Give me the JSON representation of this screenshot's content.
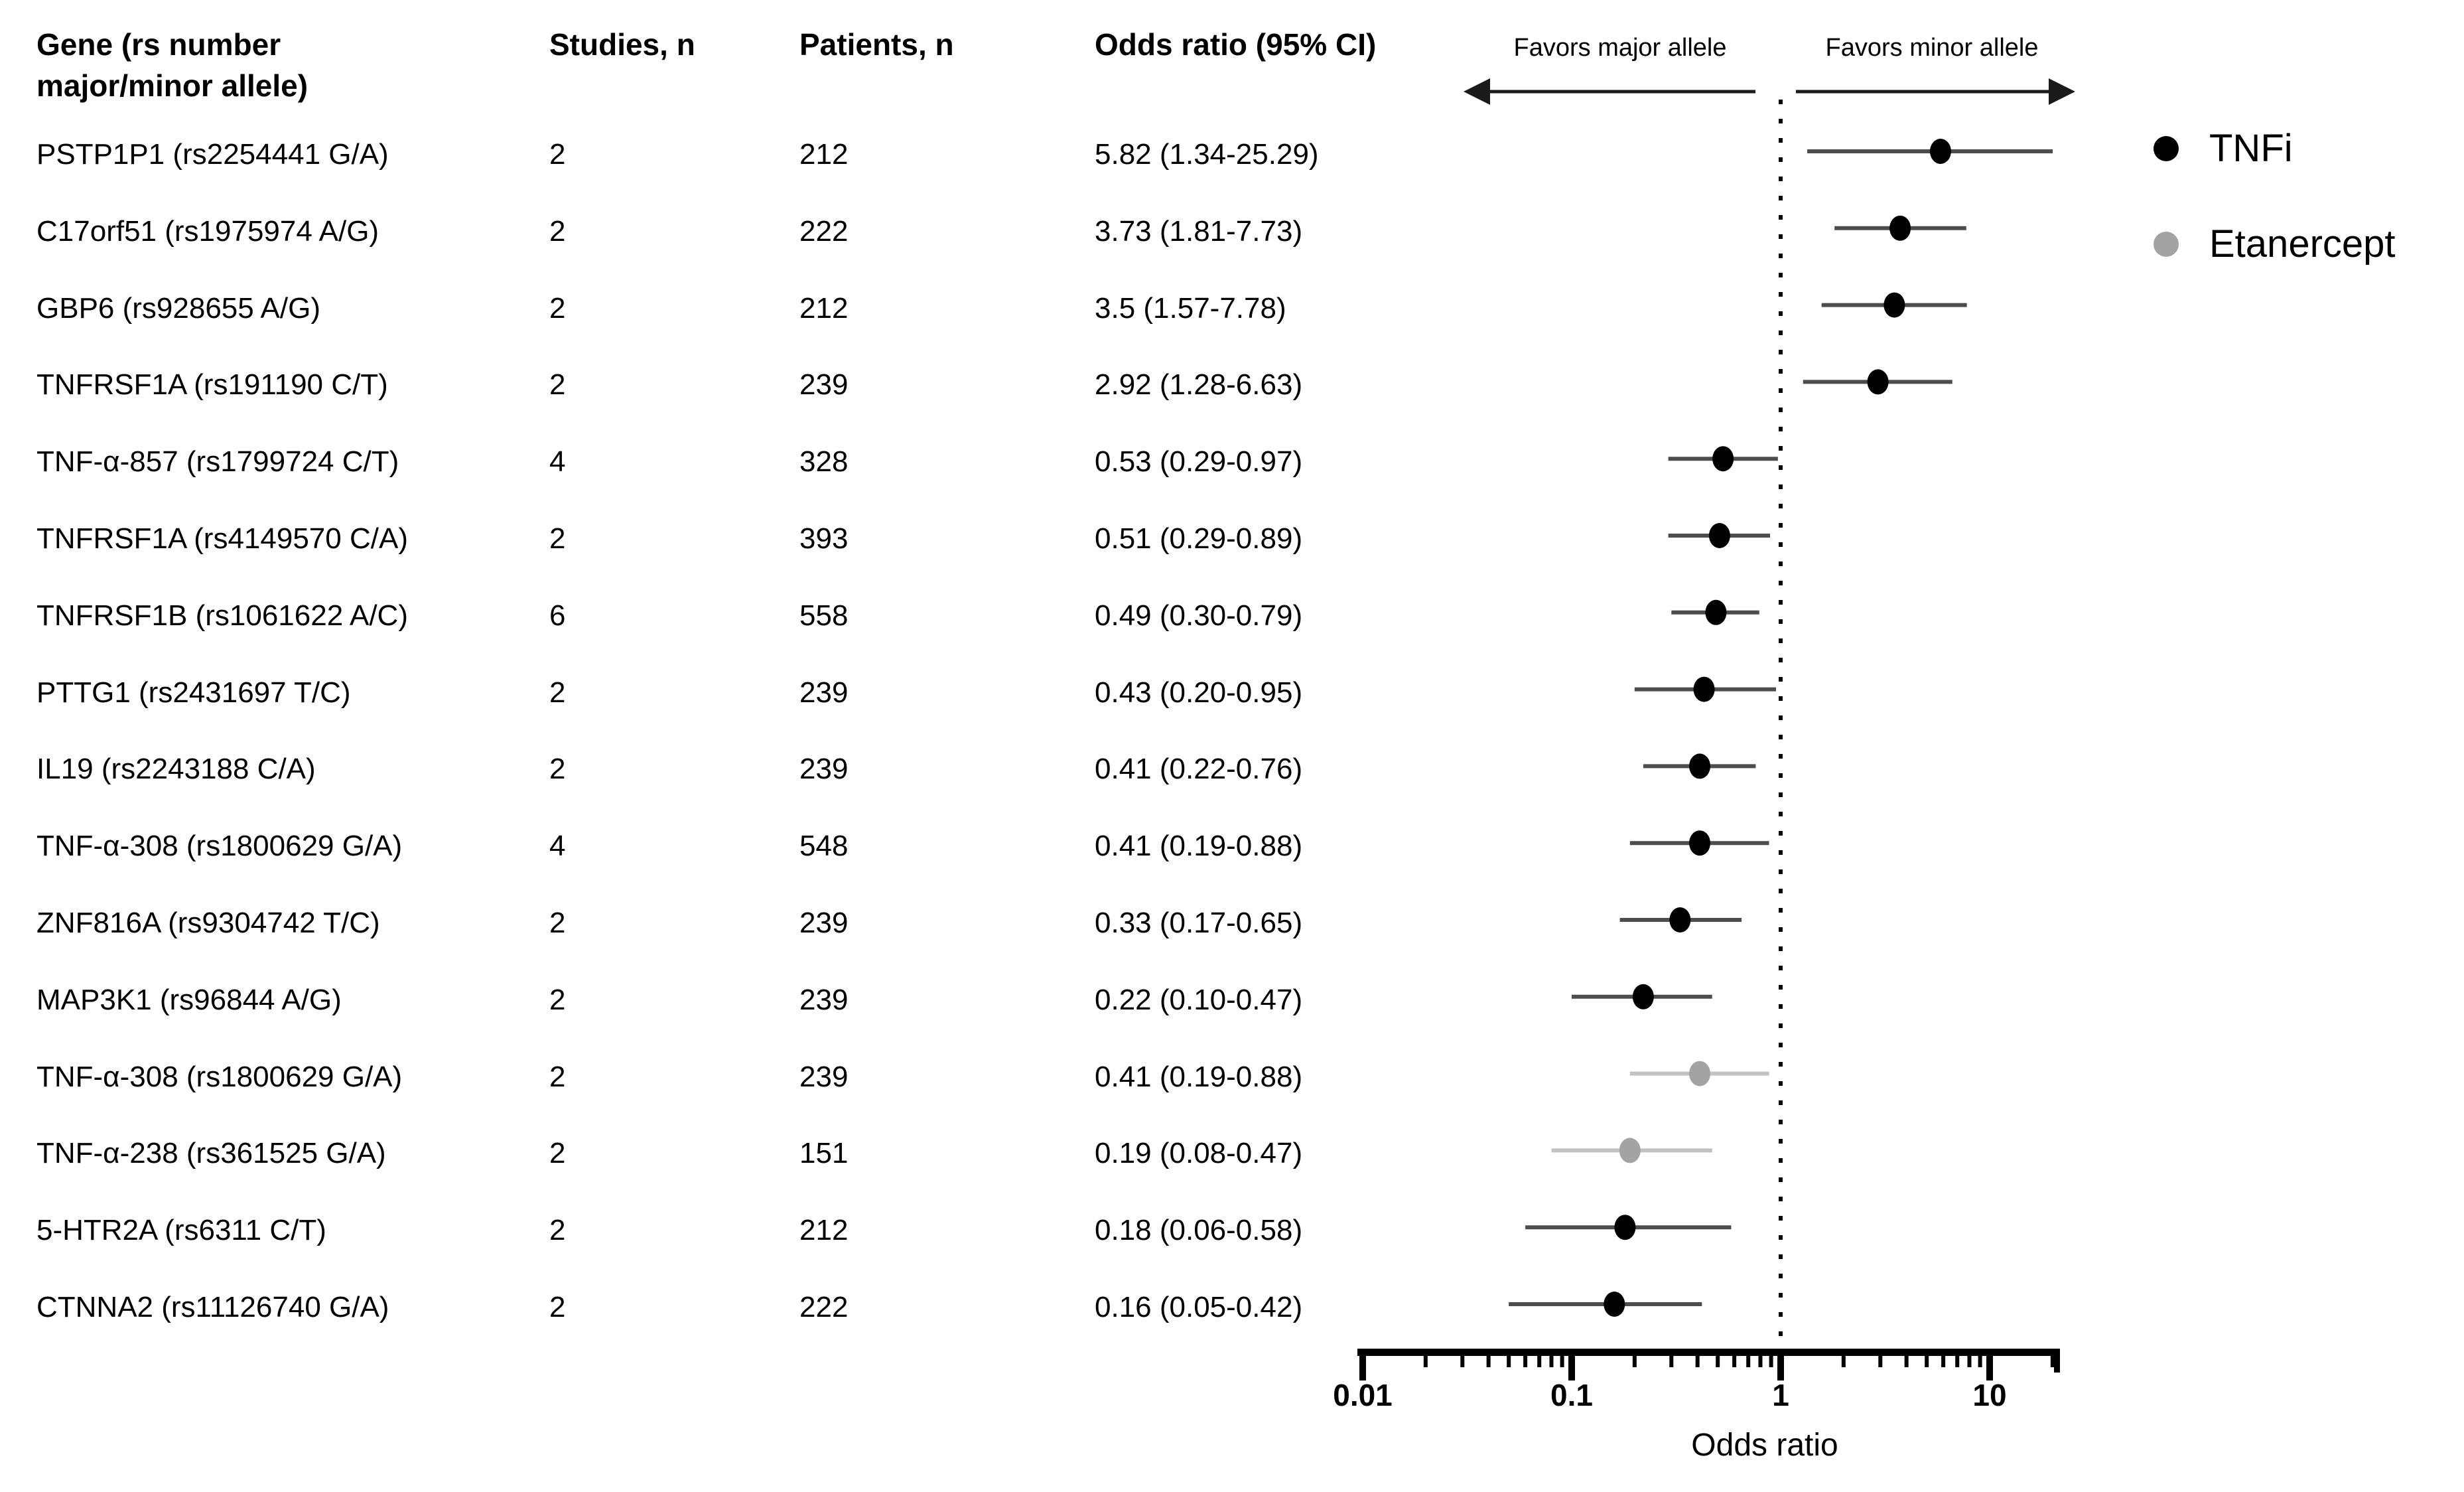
{
  "table": {
    "header": {
      "gene_line1": "Gene (rs number",
      "gene_line2": "major/minor allele)",
      "studies": "Studies, n",
      "patients": "Patients, n",
      "odds_ratio": "Odds ratio (95% CI)"
    }
  },
  "plot_annotations": {
    "favors_left": "Favors major allele",
    "favors_right": "Favors minor allele"
  },
  "legend": {
    "items": [
      {
        "label": "TNFi",
        "color": "#000000"
      },
      {
        "label": "Etanercept",
        "color": "#a3a3a3"
      }
    ]
  },
  "colors": {
    "tnfi_marker": "#000000",
    "tnfi_line": "#4d4d4d",
    "etanercept_marker": "#a3a3a3",
    "etanercept_line": "#c2c2c2",
    "reference_line": "#000000",
    "axis": "#000000",
    "arrow": "#1a1a1a"
  },
  "chart_data": {
    "type": "forest",
    "x_scale": "log",
    "xlabel": "Odds ratio",
    "x_ticks": [
      0.01,
      0.1,
      1,
      10
    ],
    "x_tick_labels": [
      "0.01",
      "0.1",
      "1",
      "10"
    ],
    "x_range": [
      0.01,
      20
    ],
    "reference_line": 1,
    "legend_position": "right",
    "rows": [
      {
        "gene": "PSTP1P1 (rs2254441 G/A)",
        "studies": "2",
        "patients": "212",
        "or_text": "5.82 (1.34-25.29)",
        "or": 5.82,
        "ci_low": 1.34,
        "ci_high": 25.29,
        "group": "TNFi"
      },
      {
        "gene": "C17orf51 (rs1975974 A/G)",
        "studies": "2",
        "patients": "222",
        "or_text": "3.73 (1.81-7.73)",
        "or": 3.73,
        "ci_low": 1.81,
        "ci_high": 7.73,
        "group": "TNFi"
      },
      {
        "gene": "GBP6 (rs928655 A/G)",
        "studies": "2",
        "patients": "212",
        "or_text": "3.5 (1.57-7.78)",
        "or": 3.5,
        "ci_low": 1.57,
        "ci_high": 7.78,
        "group": "TNFi"
      },
      {
        "gene": "TNFRSF1A (rs191190 C/T)",
        "studies": "2",
        "patients": "239",
        "or_text": "2.92 (1.28-6.63)",
        "or": 2.92,
        "ci_low": 1.28,
        "ci_high": 6.63,
        "group": "TNFi"
      },
      {
        "gene": "TNF-α-857 (rs1799724 C/T)",
        "studies": "4",
        "patients": "328",
        "or_text": "0.53 (0.29-0.97)",
        "or": 0.53,
        "ci_low": 0.29,
        "ci_high": 0.97,
        "group": "TNFi"
      },
      {
        "gene": "TNFRSF1A (rs4149570 C/A)",
        "studies": "2",
        "patients": "393",
        "or_text": "0.51 (0.29-0.89)",
        "or": 0.51,
        "ci_low": 0.29,
        "ci_high": 0.89,
        "group": "TNFi"
      },
      {
        "gene": "TNFRSF1B (rs1061622 A/C)",
        "studies": "6",
        "patients": "558",
        "or_text": "0.49 (0.30-0.79)",
        "or": 0.49,
        "ci_low": 0.3,
        "ci_high": 0.79,
        "group": "TNFi"
      },
      {
        "gene": "PTTG1 (rs2431697 T/C)",
        "studies": "2",
        "patients": "239",
        "or_text": "0.43 (0.20-0.95)",
        "or": 0.43,
        "ci_low": 0.2,
        "ci_high": 0.95,
        "group": "TNFi"
      },
      {
        "gene": "IL19 (rs2243188 C/A)",
        "studies": "2",
        "patients": "239",
        "or_text": "0.41 (0.22-0.76)",
        "or": 0.41,
        "ci_low": 0.22,
        "ci_high": 0.76,
        "group": "TNFi"
      },
      {
        "gene": "TNF-α-308 (rs1800629 G/A)",
        "studies": "4",
        "patients": "548",
        "or_text": "0.41 (0.19-0.88)",
        "or": 0.41,
        "ci_low": 0.19,
        "ci_high": 0.88,
        "group": "TNFi"
      },
      {
        "gene": "ZNF816A (rs9304742 T/C)",
        "studies": "2",
        "patients": "239",
        "or_text": "0.33 (0.17-0.65)",
        "or": 0.33,
        "ci_low": 0.17,
        "ci_high": 0.65,
        "group": "TNFi"
      },
      {
        "gene": "MAP3K1 (rs96844 A/G)",
        "studies": "2",
        "patients": "239",
        "or_text": "0.22 (0.10-0.47)",
        "or": 0.22,
        "ci_low": 0.1,
        "ci_high": 0.47,
        "group": "TNFi"
      },
      {
        "gene": "TNF-α-308 (rs1800629 G/A)",
        "studies": "2",
        "patients": "239",
        "or_text": "0.41 (0.19-0.88)",
        "or": 0.41,
        "ci_low": 0.19,
        "ci_high": 0.88,
        "group": "Etanercept"
      },
      {
        "gene": "TNF-α-238 (rs361525 G/A)",
        "studies": "2",
        "patients": "151",
        "or_text": "0.19 (0.08-0.47)",
        "or": 0.19,
        "ci_low": 0.08,
        "ci_high": 0.47,
        "group": "Etanercept"
      },
      {
        "gene": "5-HTR2A (rs6311 C/T)",
        "studies": "2",
        "patients": "212",
        "or_text": "0.18 (0.06-0.58)",
        "or": 0.18,
        "ci_low": 0.06,
        "ci_high": 0.58,
        "group": "TNFi"
      },
      {
        "gene": "CTNNA2 (rs11126740 G/A)",
        "studies": "2",
        "patients": "222",
        "or_text": "0.16 (0.05-0.42)",
        "or": 0.16,
        "ci_low": 0.05,
        "ci_high": 0.42,
        "group": "TNFi"
      }
    ]
  }
}
